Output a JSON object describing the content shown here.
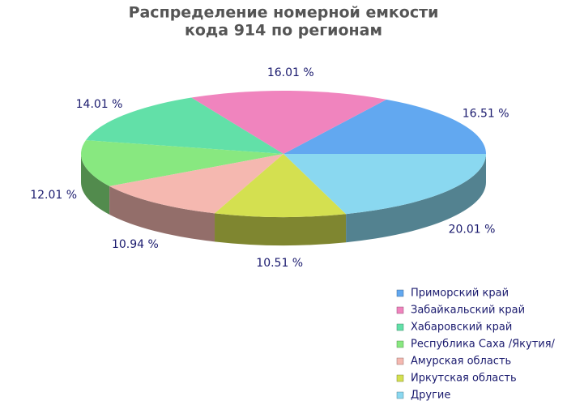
{
  "chart_data": {
    "type": "pie3d",
    "title": [
      "Распределение номерной емкости",
      "кода 914 по регионам"
    ],
    "categories": [
      "Приморский край",
      "Забайкальский край",
      "Хабаровский край",
      "Республика Саха /Якутия/",
      "Амурская область",
      "Иркутская область",
      "Другие"
    ],
    "values": [
      16.51,
      16.01,
      14.01,
      12.01,
      10.94,
      10.51,
      20.01
    ],
    "value_labels": [
      "16.51 %",
      "16.01 %",
      "14.01 %",
      "12.01 %",
      "10.94 %",
      "10.51 %",
      "20.01 %"
    ],
    "colors": [
      "#62a8f0",
      "#f084be",
      "#62e0a8",
      "#88e880",
      "#f5b8b0",
      "#d4e050",
      "#8ad8f0"
    ],
    "legend": "bottom-right"
  }
}
